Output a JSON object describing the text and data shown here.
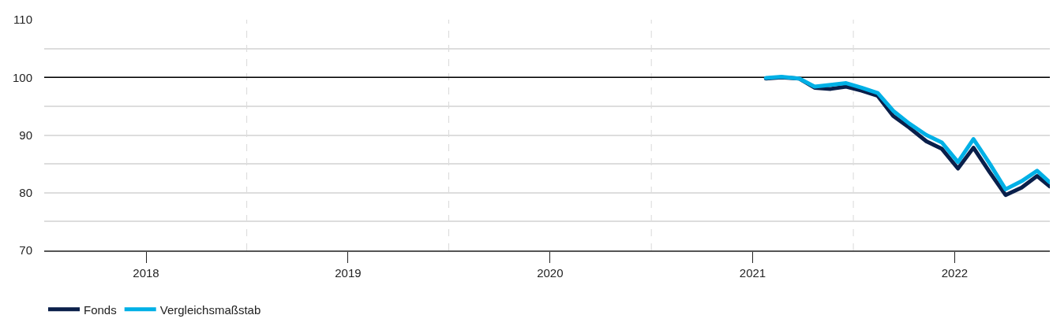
{
  "chart_data": {
    "type": "line",
    "series": [
      {
        "name": "Fonds",
        "color": "#0a1f4a",
        "x": [
          "2021-01-25",
          "2021-02-22",
          "2021-03-26",
          "2021-04-23",
          "2021-05-22",
          "2021-06-19",
          "2021-07-17",
          "2021-08-15",
          "2021-09-12",
          "2021-10-11",
          "2021-11-11",
          "2021-12-09",
          "2022-01-07",
          "2022-02-04",
          "2022-03-05",
          "2022-04-03",
          "2022-05-02",
          "2022-05-30",
          "2022-06-22"
        ],
        "values": [
          99.8,
          100.0,
          99.8,
          98.2,
          98.0,
          98.4,
          97.7,
          96.8,
          93.3,
          91.3,
          88.9,
          87.6,
          84.2,
          87.8,
          83.6,
          79.6,
          80.9,
          82.9,
          81.1
        ]
      },
      {
        "name": "Vergleichsmaßstab",
        "color": "#00b0e6",
        "x": [
          "2021-01-25",
          "2021-02-22",
          "2021-03-26",
          "2021-04-23",
          "2021-05-22",
          "2021-06-19",
          "2021-07-17",
          "2021-08-15",
          "2021-09-12",
          "2021-10-11",
          "2021-11-11",
          "2021-12-09",
          "2022-01-07",
          "2022-02-04",
          "2022-03-05",
          "2022-04-03",
          "2022-05-02",
          "2022-05-30",
          "2022-06-22"
        ],
        "values": [
          99.9,
          100.1,
          99.8,
          98.4,
          98.7,
          99.0,
          98.2,
          97.3,
          94.2,
          92.0,
          90.0,
          88.7,
          85.3,
          89.3,
          85.1,
          80.6,
          82.0,
          83.8,
          81.8
        ]
      }
    ],
    "xlim": [
      "2017-07-01",
      "2022-06-22"
    ],
    "xticks": [
      {
        "value": "2018-01-01",
        "label": "2018"
      },
      {
        "value": "2019-01-01",
        "label": "2019"
      },
      {
        "value": "2020-01-01",
        "label": "2020"
      },
      {
        "value": "2021-01-01",
        "label": "2021"
      },
      {
        "value": "2022-01-01",
        "label": "2022"
      }
    ],
    "ylim": [
      70,
      110
    ],
    "yticks": [
      70,
      {
        "value": 75,
        "label": null
      },
      80,
      {
        "value": 85,
        "label": null
      },
      90,
      {
        "value": 95,
        "label": null
      },
      100,
      {
        "value": 105,
        "label": null
      },
      110
    ],
    "grid": "y",
    "ref_lines": [
      {
        "axis": "y",
        "value": 100,
        "color": "#000000",
        "line_style": "solid"
      },
      {
        "axis": "x",
        "value": "2018-07-02",
        "color": "#d9d9d9",
        "line_style": "dashed"
      },
      {
        "axis": "x",
        "value": "2019-07-02",
        "color": "#d9d9d9",
        "line_style": "dashed"
      },
      {
        "axis": "x",
        "value": "2020-07-02",
        "color": "#d9d9d9",
        "line_style": "dashed"
      },
      {
        "axis": "x",
        "value": "2021-07-02",
        "color": "#d9d9d9",
        "line_style": "dashed"
      }
    ],
    "legend": "bottom left",
    "marker": "none",
    "line_style": "solid"
  }
}
